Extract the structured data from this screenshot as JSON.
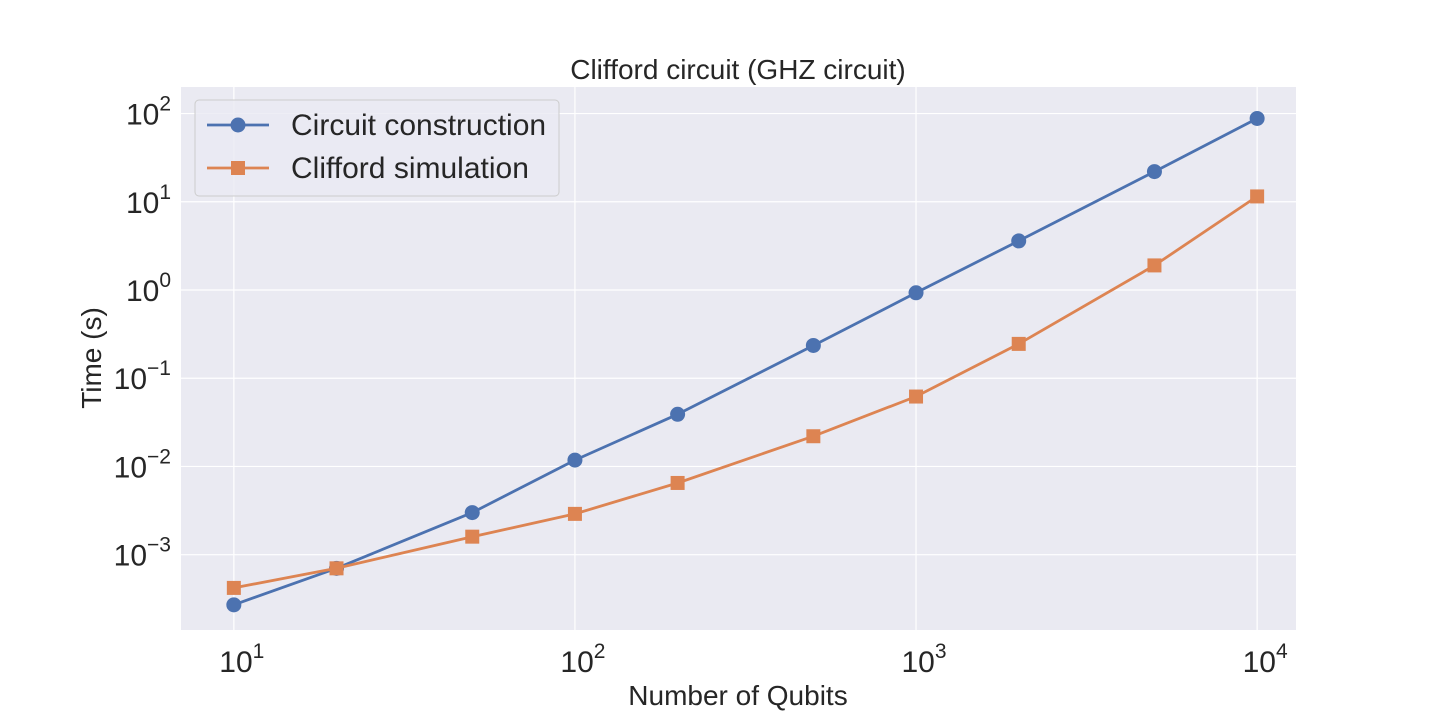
{
  "chart_data": {
    "type": "line",
    "title": "Clifford circuit (GHZ circuit)",
    "xlabel": "Number of Qubits",
    "ylabel": "Time (s)",
    "x_scale": "log",
    "y_scale": "log",
    "xlim": [
      7,
      13000
    ],
    "ylim": [
      0.00014,
      200
    ],
    "x_ticks": [
      {
        "value": 10,
        "base": "10",
        "exp": "1"
      },
      {
        "value": 100,
        "base": "10",
        "exp": "2"
      },
      {
        "value": 1000,
        "base": "10",
        "exp": "3"
      },
      {
        "value": 10000,
        "base": "10",
        "exp": "4"
      }
    ],
    "y_ticks": [
      {
        "value": 0.001,
        "base": "10",
        "exp": "−3"
      },
      {
        "value": 0.01,
        "base": "10",
        "exp": "−2"
      },
      {
        "value": 0.1,
        "base": "10",
        "exp": "−1"
      },
      {
        "value": 1,
        "base": "10",
        "exp": "0"
      },
      {
        "value": 10,
        "base": "10",
        "exp": "1"
      },
      {
        "value": 100,
        "base": "10",
        "exp": "2"
      }
    ],
    "grid": true,
    "legend_position": "top-left",
    "x": [
      10,
      20,
      50,
      100,
      200,
      500,
      1000,
      2000,
      5000,
      10000
    ],
    "series": [
      {
        "name": "Circuit construction",
        "marker": "circle",
        "color": "#4c72b0",
        "values": [
          0.00027,
          0.0007,
          0.003,
          0.0118,
          0.039,
          0.235,
          0.93,
          3.6,
          22,
          88
        ]
      },
      {
        "name": "Clifford simulation",
        "marker": "square",
        "color": "#dd8452",
        "values": [
          0.00042,
          0.0007,
          0.0016,
          0.0029,
          0.0065,
          0.022,
          0.062,
          0.245,
          1.9,
          11.5
        ]
      }
    ],
    "colors": {
      "plot_background": "#eaeaf2",
      "grid": "#ffffff",
      "text": "#262626"
    }
  }
}
